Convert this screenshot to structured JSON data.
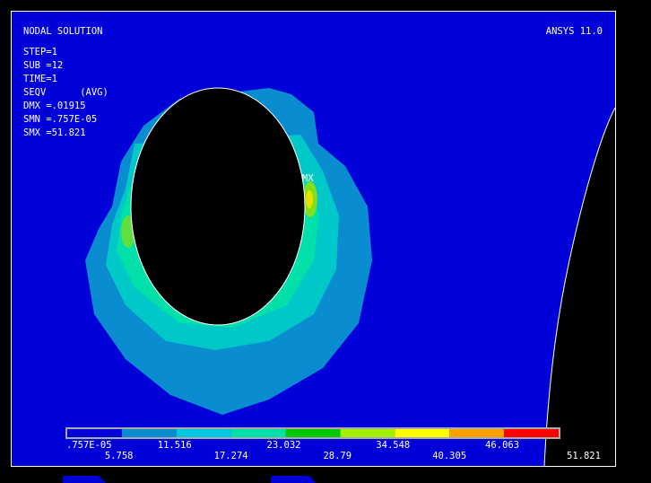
{
  "header": {
    "title": "NODAL SOLUTION",
    "program": "ANSYS 11.0",
    "info": [
      "STEP=1",
      "SUB =12",
      "TIME=1",
      "SEQV      (AVG)",
      "DMX =.01915",
      "SMN =.757E-05",
      "SMX =51.821"
    ]
  },
  "plot": {
    "max_marker": "MX"
  },
  "legend": {
    "upper_labels": [
      ".757E-05",
      "11.516",
      "23.032",
      "34.548",
      "46.063"
    ],
    "lower_labels": [
      "5.758",
      "17.274",
      "28.79",
      "40.305",
      "51.821"
    ]
  }
}
